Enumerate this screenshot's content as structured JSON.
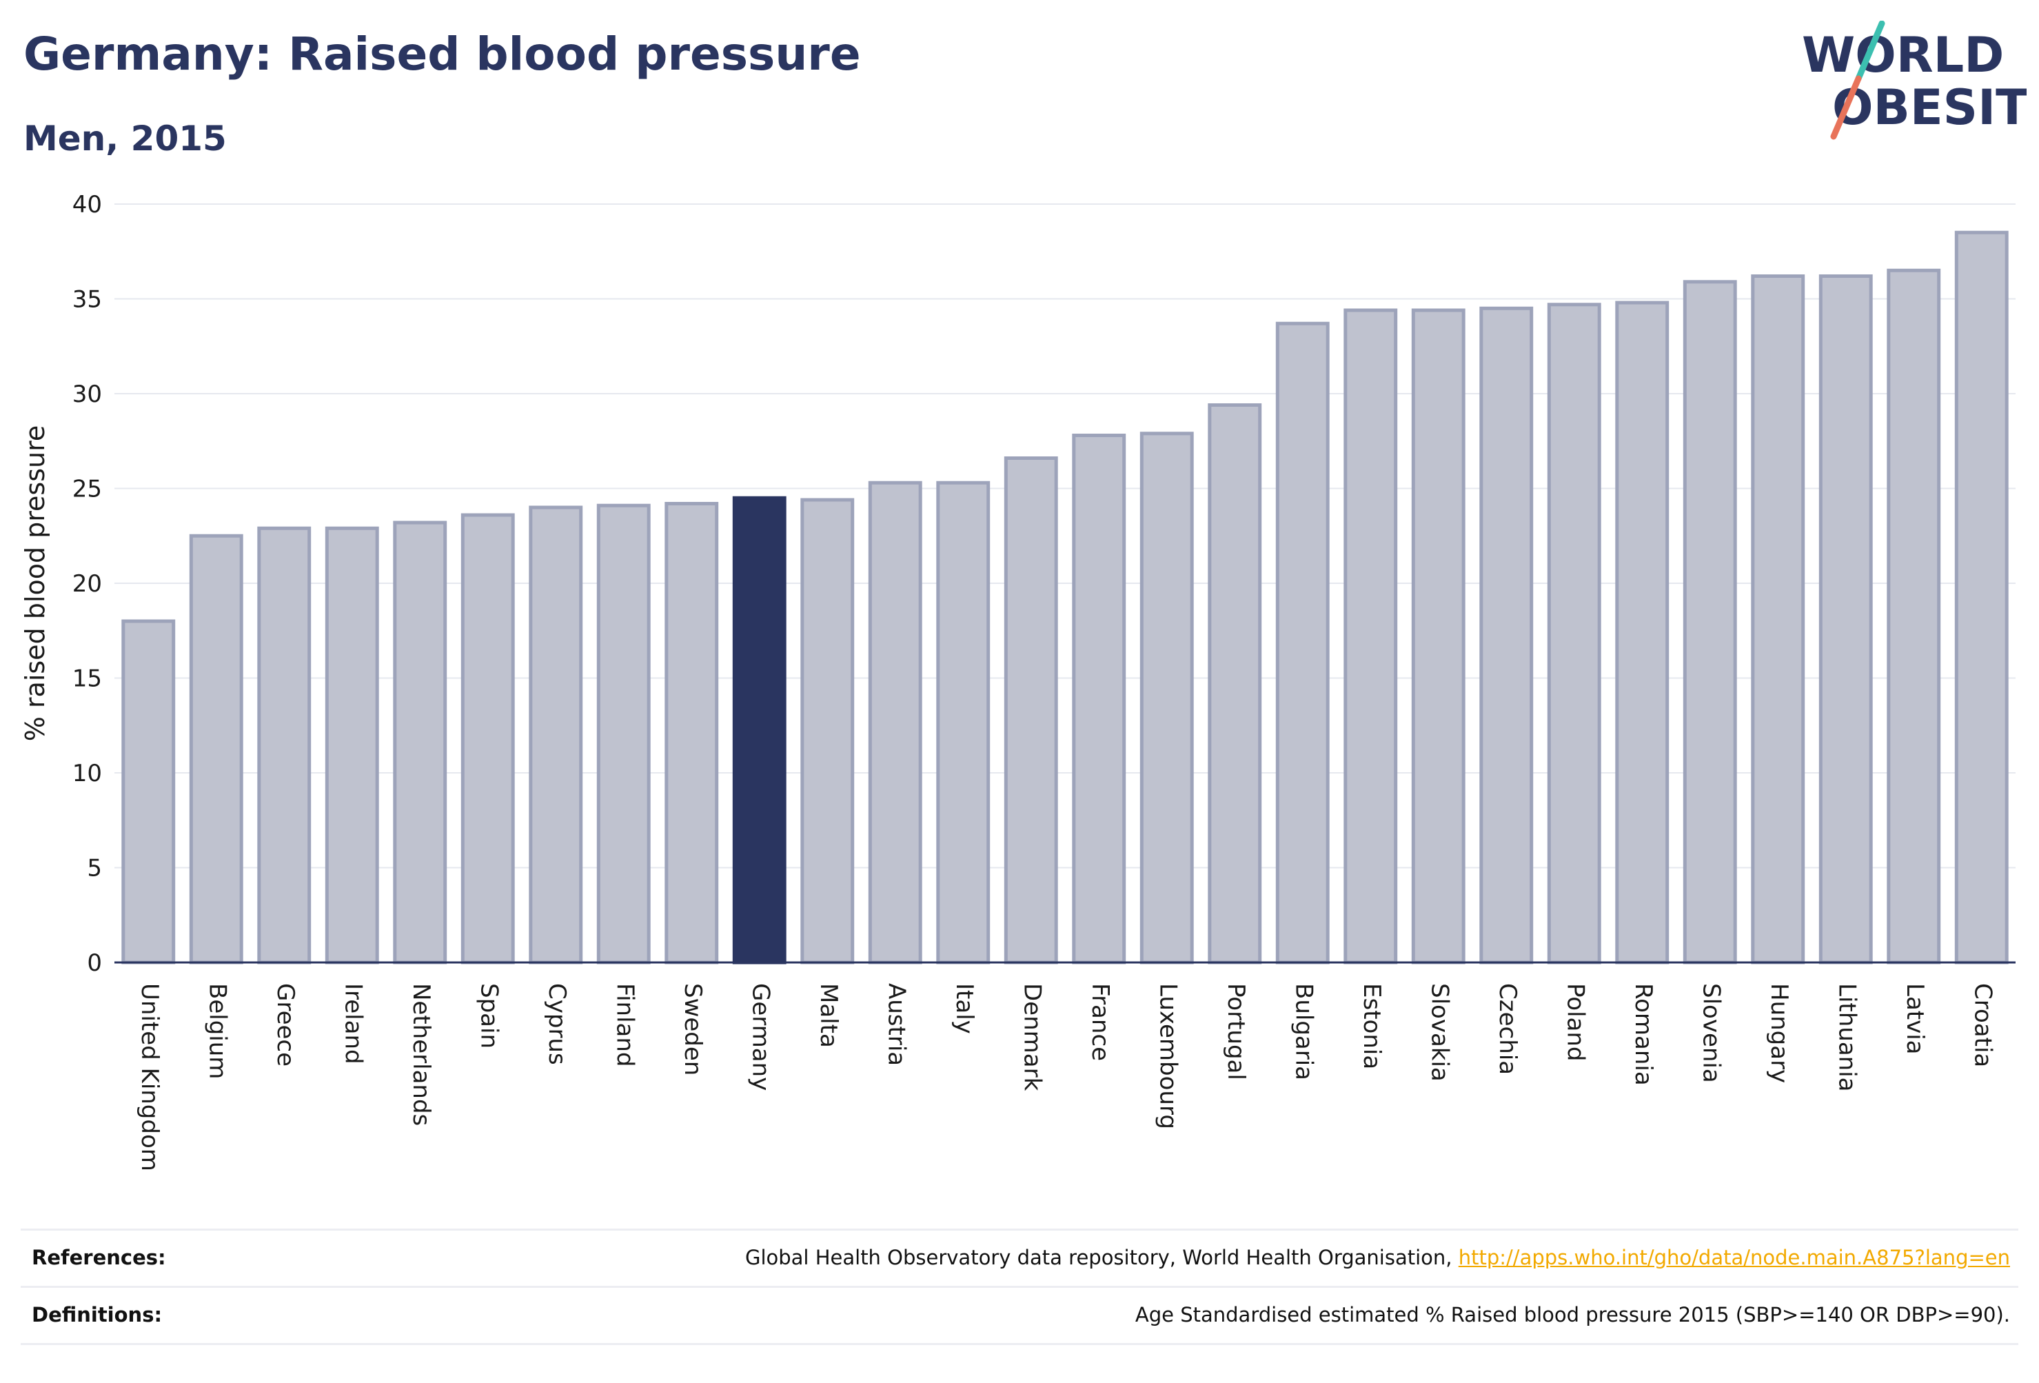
{
  "header": {
    "title": "Germany: Raised blood pressure",
    "subtitle": "Men, 2015"
  },
  "logo": {
    "line1": "WORLD",
    "line2": "OBESITY",
    "colors": {
      "text": "#2a3560",
      "slash_top": "#3cbfb0",
      "slash_bottom": "#e8735a"
    }
  },
  "footer": {
    "references_label": "References:",
    "references_text": "Global Health Observatory data repository, World Health Organisation, ",
    "references_link": "http://apps.who.int/gho/data/node.main.A875?lang=en",
    "definitions_label": "Definitions:",
    "definitions_text": "Age Standardised estimated % Raised blood pressure 2015 (SBP>=140 OR DBP>=90)."
  },
  "chart_data": {
    "type": "bar",
    "title": "Germany: Raised blood pressure",
    "subtitle": "Men, 2015",
    "xlabel": "",
    "ylabel": "% raised blood pressure",
    "ylim": [
      0,
      40
    ],
    "yticks": [
      0,
      5,
      10,
      15,
      20,
      25,
      30,
      35,
      40
    ],
    "grid": true,
    "highlight": "Germany",
    "colors": {
      "bar": "#bfc2cf",
      "bar_edge": "#9da3ba",
      "highlight": "#2a3560"
    },
    "categories": [
      "United Kingdom",
      "Belgium",
      "Greece",
      "Ireland",
      "Netherlands",
      "Spain",
      "Cyprus",
      "Finland",
      "Sweden",
      "Germany",
      "Malta",
      "Austria",
      "Italy",
      "Denmark",
      "France",
      "Luxembourg",
      "Portugal",
      "Bulgaria",
      "Estonia",
      "Slovakia",
      "Czechia",
      "Poland",
      "Romania",
      "Slovenia",
      "Hungary",
      "Lithuania",
      "Latvia",
      "Croatia"
    ],
    "values": [
      18.0,
      22.5,
      22.9,
      22.9,
      23.2,
      23.6,
      24.0,
      24.1,
      24.2,
      24.5,
      24.4,
      25.3,
      25.3,
      26.6,
      27.8,
      27.9,
      29.4,
      33.7,
      34.4,
      34.4,
      34.5,
      34.7,
      34.8,
      35.9,
      36.2,
      36.2,
      36.5,
      38.5
    ]
  }
}
